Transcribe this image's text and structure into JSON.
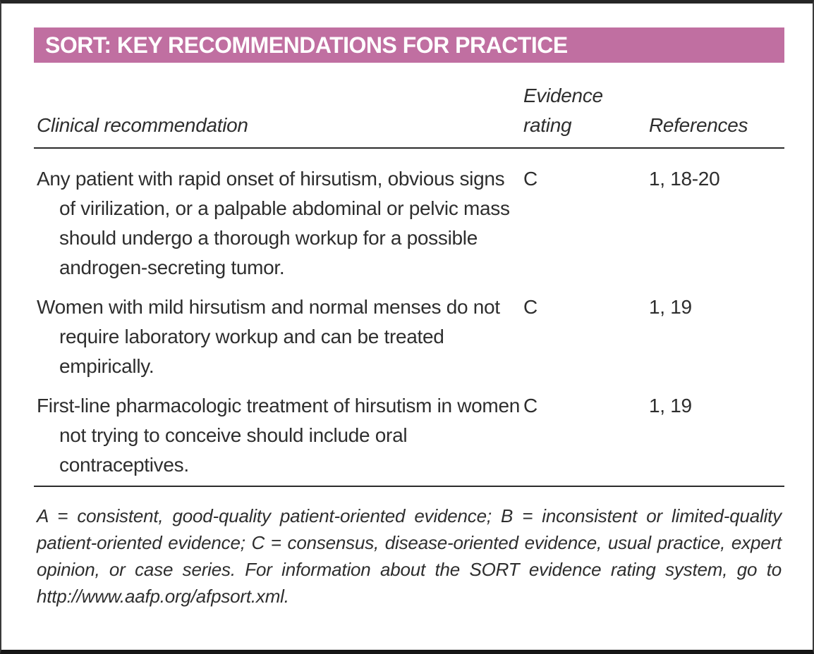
{
  "table": {
    "title": "SORT: KEY RECOMMENDATIONS FOR PRACTICE",
    "columns": {
      "recommendation": "Clinical recommendation",
      "rating": "Evidence rating",
      "references": "References"
    },
    "rows": [
      {
        "recommendation": "Any patient with rapid onset of hirsutism, obvious signs of virilization, or a palpable abdominal or pelvic mass should undergo a thorough workup for a possible androgen-secreting tumor.",
        "rating": "C",
        "references": "1, 18-20"
      },
      {
        "recommendation": "Women with mild hirsutism and normal menses do not require laboratory workup and can be treated empirically.",
        "rating": "C",
        "references": "1, 19"
      },
      {
        "recommendation": "First-line pharmacologic treatment of hirsutism in women not trying to conceive should include oral contraceptives.",
        "rating": "C",
        "references": "1, 19"
      }
    ],
    "footnote": "A = consistent, good-quality patient-oriented evidence; B = inconsistent or limited-quality patient-oriented evidence; C = consensus, disease-oriented evidence, usual practice, expert opinion, or case series. For information about the SORT evidence rating system, go to http://www.aafp.org/afpsort.xml.",
    "colors": {
      "header_bg": "#c06fa1",
      "header_text": "#ffffff",
      "body_text": "#2e2e2e",
      "rule": "#2b2b2b"
    }
  }
}
